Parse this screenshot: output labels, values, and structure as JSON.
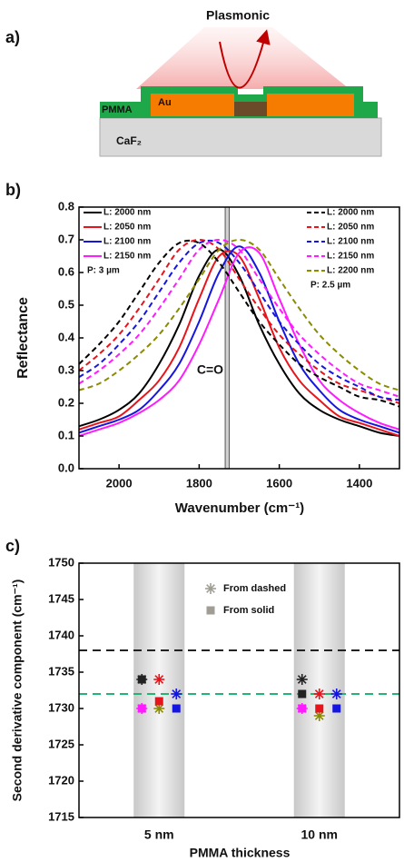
{
  "panel_a": {
    "label": "a)",
    "title": "Plasmonic",
    "pmma": "PMMA",
    "au": "Au",
    "substrate": "CaF₂"
  },
  "chart_data": [
    {
      "type": "line",
      "panel_label": "b)",
      "xlabel": "Wavenumber (cm⁻¹)",
      "ylabel": "Reflectance",
      "x": [
        2100,
        2050,
        2000,
        1950,
        1900,
        1850,
        1800,
        1750,
        1700,
        1650,
        1600,
        1550,
        1500,
        1450,
        1400,
        1350,
        1300
      ],
      "xlim": [
        2100,
        1300
      ],
      "xticks": [
        2000,
        1800,
        1600,
        1400
      ],
      "ylim": [
        0,
        0.8
      ],
      "yticks": [
        {
          "value": 0,
          "label": "0.0"
        },
        0.1,
        0.2,
        0.3,
        0.4,
        0.5,
        0.6,
        0.7,
        0.8
      ],
      "series": [
        {
          "name": "L: 2000 nm",
          "color": "#000000",
          "dash": false,
          "values": [
            0.13,
            0.15,
            0.18,
            0.23,
            0.32,
            0.44,
            0.59,
            0.67,
            0.59,
            0.44,
            0.32,
            0.23,
            0.18,
            0.15,
            0.13,
            0.11,
            0.1
          ]
        },
        {
          "name": "L: 2050 nm",
          "color": "#e8141b",
          "dash": false,
          "values": [
            0.12,
            0.14,
            0.16,
            0.21,
            0.27,
            0.37,
            0.52,
            0.65,
            0.65,
            0.52,
            0.37,
            0.27,
            0.21,
            0.16,
            0.14,
            0.12,
            0.1
          ]
        },
        {
          "name": "L: 2100 nm",
          "color": "#1515e0",
          "dash": false,
          "values": [
            0.11,
            0.13,
            0.15,
            0.18,
            0.24,
            0.32,
            0.45,
            0.6,
            0.68,
            0.6,
            0.45,
            0.32,
            0.24,
            0.18,
            0.15,
            0.13,
            0.11
          ]
        },
        {
          "name": "L: 2150 nm",
          "color": "#ff1aff",
          "dash": false,
          "values": [
            0.1,
            0.12,
            0.14,
            0.17,
            0.21,
            0.27,
            0.38,
            0.52,
            0.66,
            0.66,
            0.52,
            0.38,
            0.27,
            0.21,
            0.17,
            0.14,
            0.12
          ]
        },
        {
          "name": "L: 2000 nm",
          "color": "#000000",
          "dash": true,
          "values": [
            0.32,
            0.38,
            0.45,
            0.54,
            0.63,
            0.69,
            0.69,
            0.63,
            0.54,
            0.45,
            0.38,
            0.32,
            0.28,
            0.25,
            0.22,
            0.21,
            0.19
          ]
        },
        {
          "name": "L: 2050 nm",
          "color": "#e8141b",
          "dash": true,
          "values": [
            0.3,
            0.35,
            0.41,
            0.49,
            0.58,
            0.67,
            0.7,
            0.67,
            0.58,
            0.49,
            0.41,
            0.35,
            0.3,
            0.26,
            0.24,
            0.22,
            0.2
          ]
        },
        {
          "name": "L: 2100 nm",
          "color": "#1515e0",
          "dash": true,
          "values": [
            0.28,
            0.32,
            0.38,
            0.45,
            0.54,
            0.63,
            0.69,
            0.69,
            0.63,
            0.54,
            0.45,
            0.38,
            0.32,
            0.28,
            0.25,
            0.22,
            0.21
          ]
        },
        {
          "name": "L: 2150 nm",
          "color": "#ff1aff",
          "dash": true,
          "values": [
            0.26,
            0.3,
            0.35,
            0.41,
            0.49,
            0.58,
            0.67,
            0.7,
            0.67,
            0.58,
            0.49,
            0.41,
            0.35,
            0.3,
            0.26,
            0.24,
            0.22
          ]
        },
        {
          "name": "L: 2200 nm",
          "color": "#8b8b00",
          "dash": true,
          "values": [
            0.24,
            0.26,
            0.3,
            0.35,
            0.41,
            0.49,
            0.58,
            0.67,
            0.7,
            0.67,
            0.58,
            0.49,
            0.41,
            0.35,
            0.3,
            0.26,
            0.24
          ]
        }
      ],
      "legend_notes": {
        "solid": "P: 3 µm",
        "dashed": "P: 2.5 µm"
      },
      "band": [
        1735,
        1725
      ],
      "band_label": "C=O"
    },
    {
      "type": "scatter",
      "panel_label": "c)",
      "xlabel": "PMMA thickness",
      "ylabel": "Second derivative component (cm⁻¹)",
      "categories": [
        "5 nm",
        "10 nm"
      ],
      "ylim": [
        1715,
        1750
      ],
      "yticks": [
        1715,
        1720,
        1725,
        1730,
        1735,
        1740,
        1745,
        1750
      ],
      "reference_lines": [
        {
          "value": 1738,
          "color": "#222222"
        },
        {
          "value": 1732,
          "color": "#22b573"
        }
      ],
      "series": [
        {
          "name": "From dashed",
          "marker": "asterisk",
          "color": "#a09e94",
          "subseries": [
            {
              "color": "#222222",
              "values": [
                1734,
                1734
              ]
            },
            {
              "color": "#ff1aff",
              "values": [
                1730,
                1730
              ]
            },
            {
              "color": "#e8141b",
              "values": [
                1734,
                1732
              ]
            },
            {
              "color": "#8b8b00",
              "values": [
                1730,
                1729
              ]
            },
            {
              "color": "#1515e0",
              "values": [
                1732,
                1732
              ]
            }
          ]
        },
        {
          "name": "From solid",
          "marker": "square",
          "color": "#a09e94",
          "subseries": [
            {
              "color": "#222222",
              "values": [
                1734,
                1732
              ]
            },
            {
              "color": "#ff1aff",
              "values": [
                1730,
                1730
              ]
            },
            {
              "color": "#e8141b",
              "values": [
                1731,
                1730
              ]
            },
            {
              "color": "#1515e0",
              "values": [
                1730,
                1730
              ]
            }
          ]
        }
      ]
    }
  ]
}
